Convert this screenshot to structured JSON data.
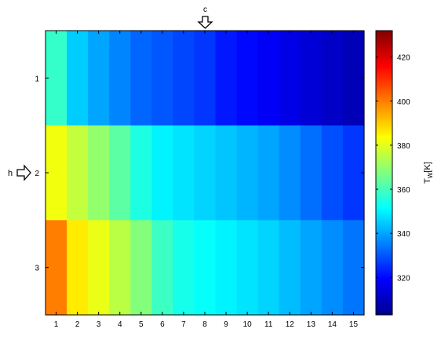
{
  "chart_data": {
    "type": "heatmap",
    "x": [
      1,
      2,
      3,
      4,
      5,
      6,
      7,
      8,
      9,
      10,
      11,
      12,
      13,
      14,
      15
    ],
    "y": [
      1,
      2,
      3
    ],
    "values": [
      [
        358,
        345,
        340,
        336,
        332,
        330,
        328,
        326,
        322,
        320,
        318,
        316,
        314,
        312,
        310
      ],
      [
        382,
        376,
        370,
        363,
        355,
        350,
        348,
        346,
        344,
        342,
        340,
        337,
        333,
        329,
        326
      ],
      [
        400,
        386,
        381,
        375,
        368,
        359,
        354,
        352,
        350,
        348,
        346,
        343,
        340,
        337,
        334
      ]
    ],
    "colorbar": {
      "label": "T_W[K]",
      "label_main": "T",
      "label_sub": "W",
      "label_tail": "[K]",
      "range": [
        303,
        432
      ],
      "ticks": [
        320,
        340,
        360,
        380,
        400,
        420
      ],
      "colormap": "jet"
    },
    "annotations": {
      "top_label": "c",
      "left_label": "h"
    },
    "grid": false
  }
}
